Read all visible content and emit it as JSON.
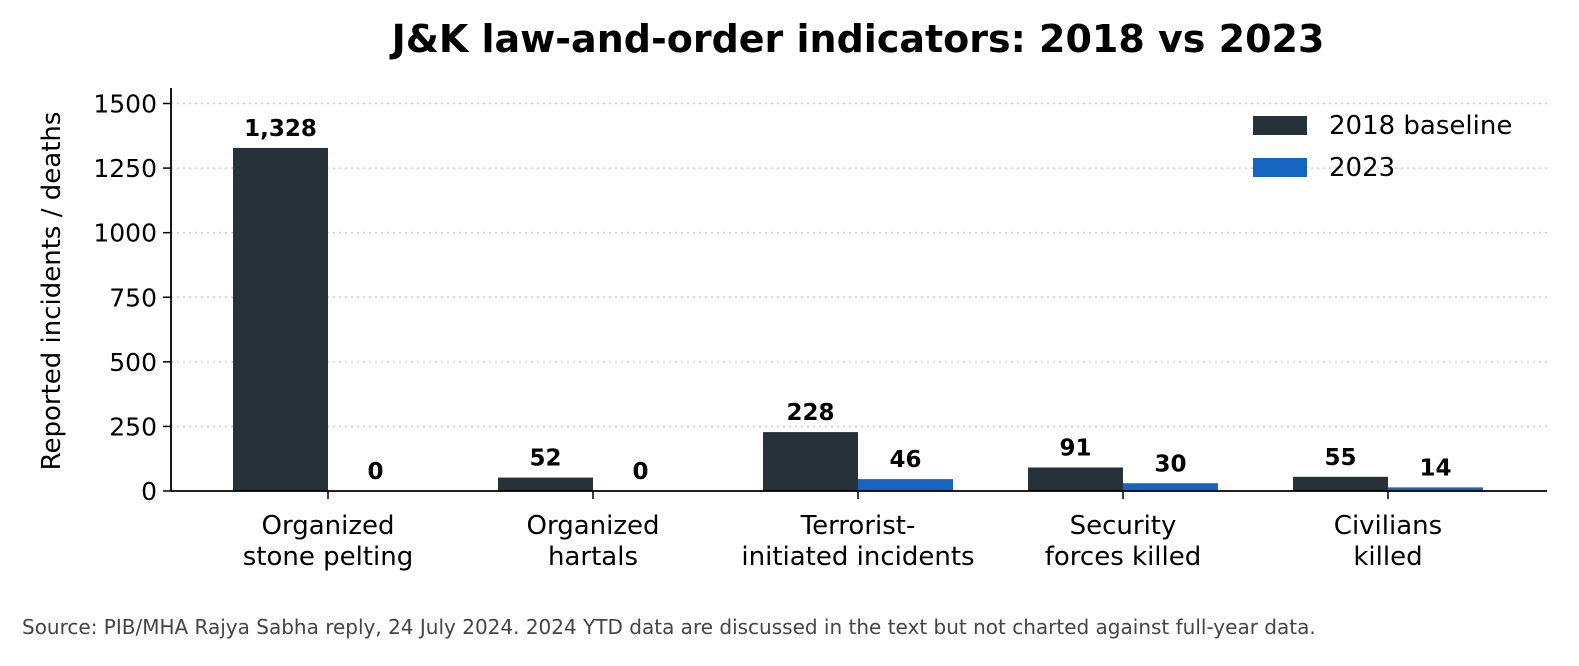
{
  "chart_data": {
    "type": "bar",
    "title": "J&K law-and-order indicators: 2018 vs 2023",
    "xlabel": "",
    "ylabel": "Reported incidents / deaths",
    "ylim": [
      0,
      1560
    ],
    "yticks": [
      0,
      250,
      500,
      750,
      1000,
      1250,
      1500
    ],
    "grid": "horizontal dotted",
    "legend_position": "top-right",
    "categories": [
      [
        "Organized",
        "stone pelting"
      ],
      [
        "Organized",
        "hartals"
      ],
      [
        "Terrorist-",
        "initiated incidents"
      ],
      [
        "Security",
        "forces killed"
      ],
      [
        "Civilians",
        "killed"
      ]
    ],
    "series": [
      {
        "name": "2018 baseline",
        "color": "#263238",
        "values": [
          1328,
          52,
          228,
          91,
          55
        ],
        "labels": [
          "1,328",
          "52",
          "228",
          "91",
          "55"
        ]
      },
      {
        "name": "2023",
        "color": "#1565c0",
        "values": [
          0,
          0,
          46,
          30,
          14
        ],
        "labels": [
          "0",
          "0",
          "46",
          "30",
          "14"
        ]
      }
    ],
    "source_note": "Source: PIB/MHA Rajya Sabha reply, 24 July 2024. 2024 YTD data are discussed in the text but not charted against full-year data."
  }
}
